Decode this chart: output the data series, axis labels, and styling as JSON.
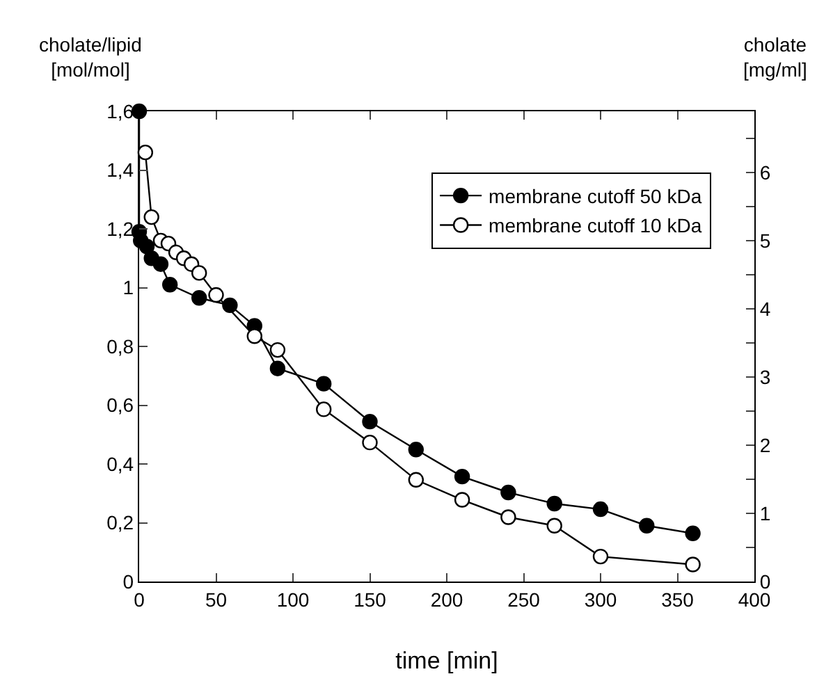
{
  "chart_data": {
    "type": "line",
    "xlabel": "time [min]",
    "ylabel": "cholate/lipid\n[mol/mol]",
    "y2label": "cholate\n[mg/ml]",
    "xlim": [
      0,
      400
    ],
    "xticks": [
      0,
      50,
      100,
      150,
      200,
      250,
      300,
      350,
      400
    ],
    "ylim": [
      0,
      1.6
    ],
    "yticks": [
      0,
      {
        "value": 0.2,
        "label": "0,2"
      },
      {
        "value": 0.4,
        "label": "0,4"
      },
      {
        "value": 0.6,
        "label": "0,6"
      },
      {
        "value": 0.8,
        "label": "0,8"
      },
      1,
      {
        "value": 1.2,
        "label": "1,2"
      },
      {
        "value": 1.4,
        "label": "1,4"
      },
      {
        "value": 1.6,
        "label": "1,6"
      }
    ],
    "y2lim": [
      0,
      6.9
    ],
    "y2ticks": [
      0,
      {
        "value": 0.5,
        "label": null
      },
      1,
      {
        "value": 1.5,
        "label": null
      },
      2,
      {
        "value": 2.5,
        "label": null
      },
      3,
      {
        "value": 3.5,
        "label": null
      },
      4,
      {
        "value": 4.5,
        "label": null
      },
      5,
      {
        "value": 5.5,
        "label": null
      },
      6,
      {
        "value": 6.5,
        "label": null
      }
    ],
    "marker": "circle",
    "line_style": "solid",
    "grid": false,
    "legend": "top right",
    "series": [
      {
        "name": "membrane cutoff 50 kDa",
        "color": "#000000",
        "x": [
          0,
          0,
          1,
          5,
          8,
          14,
          20,
          39,
          59,
          75,
          90,
          120,
          150,
          180,
          210,
          240,
          270,
          300,
          330,
          360
        ],
        "values": [
          1.6,
          1.19,
          1.16,
          1.14,
          1.1,
          1.08,
          1.01,
          0.965,
          0.94,
          0.87,
          0.725,
          0.673,
          0.544,
          0.449,
          0.357,
          0.303,
          0.265,
          0.246,
          0.19,
          0.164
        ]
      },
      {
        "name": "membrane cutoff 10 kDa",
        "color": "#ffffff",
        "x": [
          4,
          8,
          14,
          19,
          24,
          29,
          34,
          39,
          50,
          75,
          90,
          120,
          150,
          180,
          210,
          240,
          270,
          300,
          360
        ],
        "values": [
          1.46,
          1.24,
          1.16,
          1.15,
          1.12,
          1.1,
          1.08,
          1.05,
          0.975,
          0.835,
          0.788,
          0.586,
          0.473,
          0.346,
          0.278,
          0.219,
          0.19,
          0.085,
          0.058
        ]
      }
    ]
  }
}
